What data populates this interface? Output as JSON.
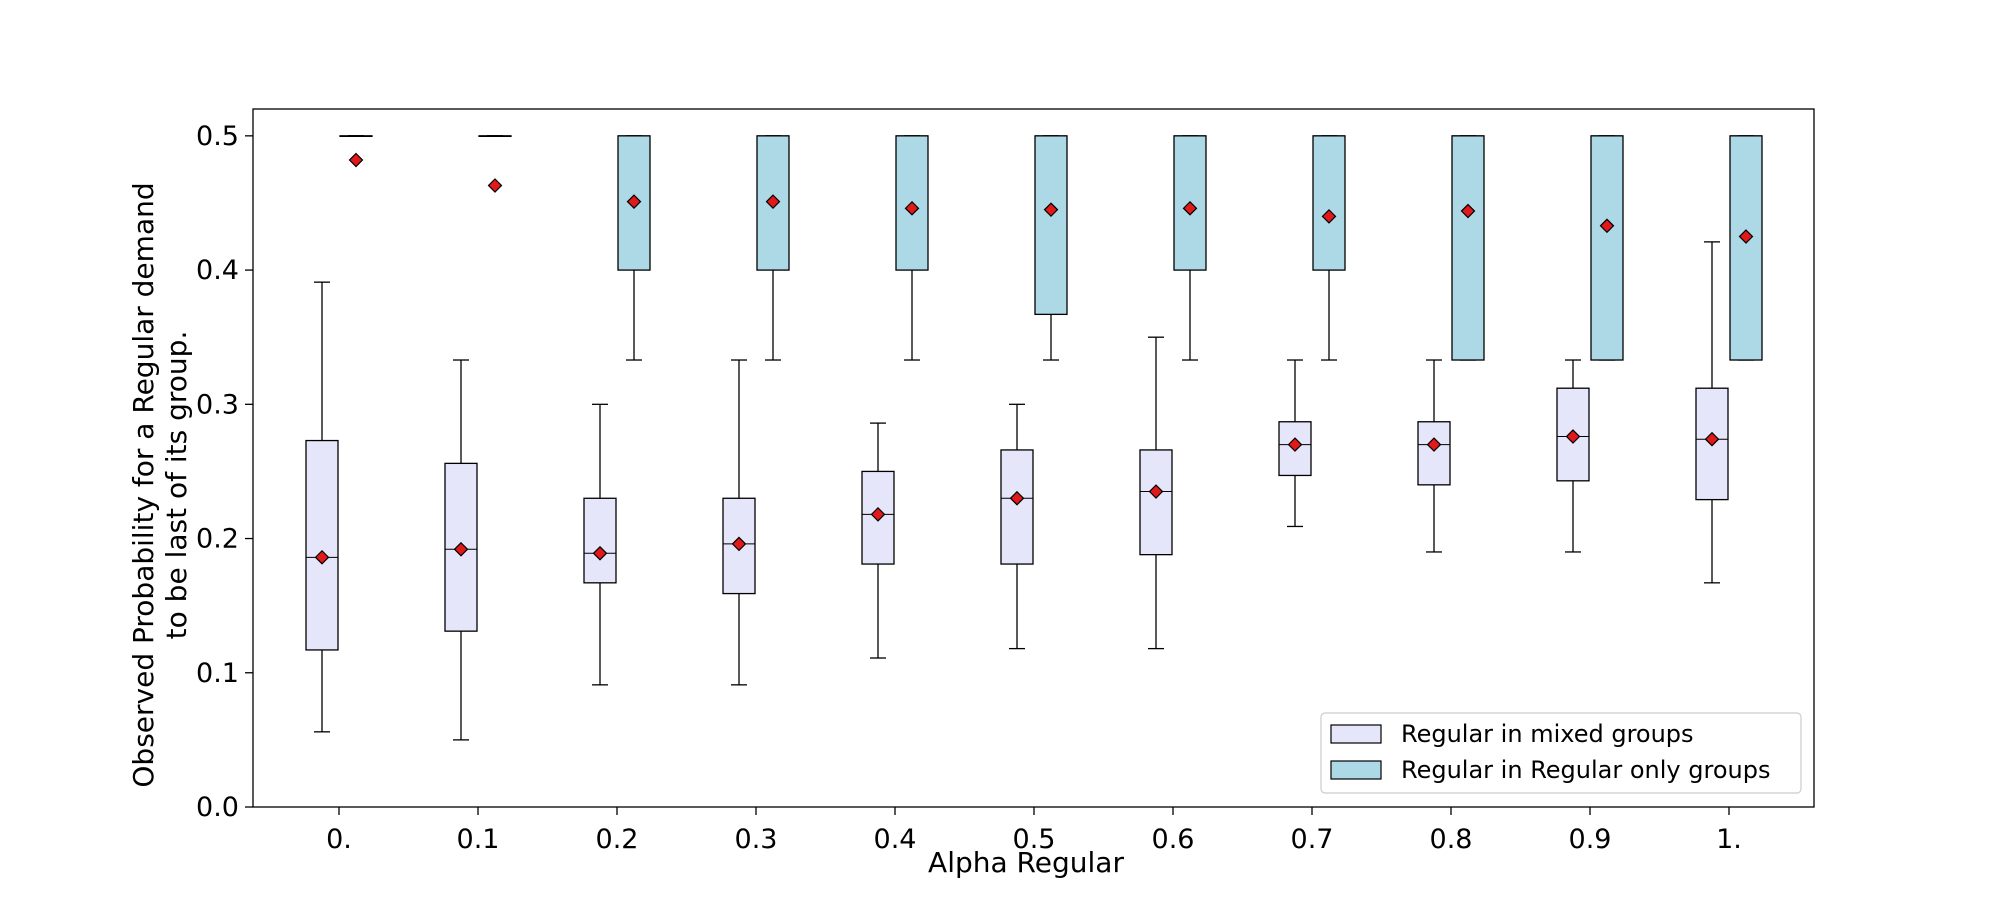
{
  "chart_data": {
    "type": "boxplot",
    "title": "",
    "xlabel": "Alpha Regular",
    "ylabel_lines": [
      "Observed Probability for a Regular demand",
      "to be last of its group."
    ],
    "ylim": [
      0.0,
      0.52
    ],
    "yticks": [
      0.0,
      0.1,
      0.2,
      0.3,
      0.4,
      0.5
    ],
    "ytick_labels": [
      "0.0",
      "0.1",
      "0.2",
      "0.3",
      "0.4",
      "0.5"
    ],
    "categories": [
      "0.",
      "0.1",
      "0.2",
      "0.3",
      "0.4",
      "0.5",
      "0.6",
      "0.7",
      "0.8",
      "0.9",
      "1."
    ],
    "legend_position": "lower-right",
    "mean_marker": {
      "shape": "diamond",
      "color": "#e0191b"
    },
    "series": [
      {
        "name": "Regular in mixed groups",
        "color": "#e6e6fa",
        "boxes": [
          {
            "whislo": 0.056,
            "q1": 0.117,
            "med": 0.186,
            "q3": 0.273,
            "whishi": 0.391,
            "mean": 0.186
          },
          {
            "whislo": 0.05,
            "q1": 0.131,
            "med": 0.192,
            "q3": 0.256,
            "whishi": 0.333,
            "mean": 0.192
          },
          {
            "whislo": 0.091,
            "q1": 0.167,
            "med": 0.189,
            "q3": 0.23,
            "whishi": 0.3,
            "mean": 0.189
          },
          {
            "whislo": 0.091,
            "q1": 0.159,
            "med": 0.196,
            "q3": 0.23,
            "whishi": 0.333,
            "mean": 0.196
          },
          {
            "whislo": 0.111,
            "q1": 0.181,
            "med": 0.218,
            "q3": 0.25,
            "whishi": 0.286,
            "mean": 0.218
          },
          {
            "whislo": 0.118,
            "q1": 0.181,
            "med": 0.23,
            "q3": 0.266,
            "whishi": 0.3,
            "mean": 0.23
          },
          {
            "whislo": 0.118,
            "q1": 0.188,
            "med": 0.235,
            "q3": 0.266,
            "whishi": 0.35,
            "mean": 0.235
          },
          {
            "whislo": 0.209,
            "q1": 0.247,
            "med": 0.27,
            "q3": 0.287,
            "whishi": 0.333,
            "mean": 0.27
          },
          {
            "whislo": 0.19,
            "q1": 0.24,
            "med": 0.27,
            "q3": 0.287,
            "whishi": 0.333,
            "mean": 0.27
          },
          {
            "whislo": 0.19,
            "q1": 0.243,
            "med": 0.276,
            "q3": 0.312,
            "whishi": 0.333,
            "mean": 0.276
          },
          {
            "whislo": 0.167,
            "q1": 0.229,
            "med": 0.274,
            "q3": 0.312,
            "whishi": 0.421,
            "mean": 0.274
          }
        ]
      },
      {
        "name": "Regular in Regular only groups",
        "color": "#add8e6",
        "boxes": [
          {
            "whislo": 0.5,
            "q1": 0.5,
            "med": 0.5,
            "q3": 0.5,
            "whishi": 0.5,
            "mean": 0.482
          },
          {
            "whislo": 0.5,
            "q1": 0.5,
            "med": 0.5,
            "q3": 0.5,
            "whishi": 0.5,
            "mean": 0.463
          },
          {
            "whislo": 0.333,
            "q1": 0.4,
            "med": 0.5,
            "q3": 0.5,
            "whishi": 0.5,
            "mean": 0.451
          },
          {
            "whislo": 0.333,
            "q1": 0.4,
            "med": 0.5,
            "q3": 0.5,
            "whishi": 0.5,
            "mean": 0.451
          },
          {
            "whislo": 0.333,
            "q1": 0.4,
            "med": 0.5,
            "q3": 0.5,
            "whishi": 0.5,
            "mean": 0.446
          },
          {
            "whislo": 0.333,
            "q1": 0.367,
            "med": 0.5,
            "q3": 0.5,
            "whishi": 0.5,
            "mean": 0.445
          },
          {
            "whislo": 0.333,
            "q1": 0.4,
            "med": 0.5,
            "q3": 0.5,
            "whishi": 0.5,
            "mean": 0.446
          },
          {
            "whislo": 0.333,
            "q1": 0.4,
            "med": 0.5,
            "q3": 0.5,
            "whishi": 0.5,
            "mean": 0.44
          },
          {
            "whislo": 0.333,
            "q1": 0.333,
            "med": 0.5,
            "q3": 0.5,
            "whishi": 0.5,
            "mean": 0.444
          },
          {
            "whislo": 0.333,
            "q1": 0.333,
            "med": 0.5,
            "q3": 0.5,
            "whishi": 0.5,
            "mean": 0.433
          },
          {
            "whislo": 0.333,
            "q1": 0.333,
            "med": 0.5,
            "q3": 0.5,
            "whishi": 0.5,
            "mean": 0.425
          }
        ]
      }
    ]
  }
}
